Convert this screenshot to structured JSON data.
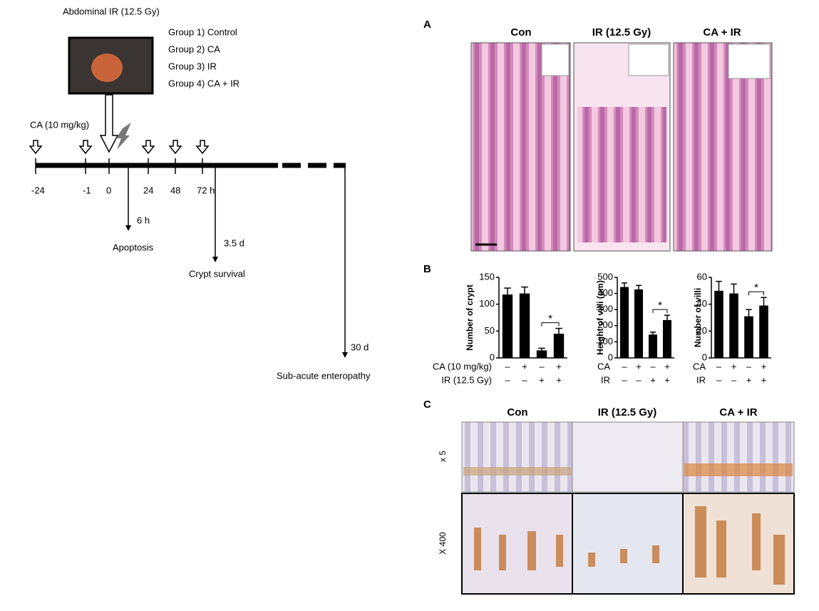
{
  "timeline": {
    "photo_label": "Abdominal IR (12.5 Gy)",
    "groups": [
      "Group 1) Control",
      "Group 2) CA",
      "Group 3) IR",
      "Group 4) CA + IR"
    ],
    "treatment_label": "CA (10 mg/kg)",
    "time_labels": [
      "-24",
      "-1",
      "0",
      "24",
      "48",
      "72 h"
    ],
    "endpoints": [
      {
        "time": "6 h",
        "label": "Apoptosis"
      },
      {
        "time": "3.5 d",
        "label": "Crypt survival"
      },
      {
        "time": "30 d",
        "label": "Sub-acute enteropathy"
      }
    ]
  },
  "panel_a": {
    "label": "A",
    "columns": [
      "Con",
      "IR (12.5 Gy)",
      "CA + IR"
    ]
  },
  "panel_b": {
    "label": "B"
  },
  "panel_c": {
    "label": "C",
    "columns": [
      "Con",
      "IR (12.5 Gy)",
      "CA + IR"
    ],
    "rows": [
      "x 5",
      "X 400"
    ]
  },
  "chart_data": [
    {
      "type": "bar",
      "ylabel": "Number of crypt",
      "values": [
        118,
        120,
        14,
        45
      ],
      "errors": [
        12,
        12,
        4,
        10
      ],
      "color": "#000000",
      "ylim": [
        0,
        150
      ],
      "yticks": [
        0,
        50,
        100,
        150
      ],
      "annotation": "*",
      "conditions": [
        {
          "label": "CA (10 mg/kg)",
          "signs": [
            "–",
            "+",
            "–",
            "+"
          ]
        },
        {
          "label": "IR (12.5 Gy)",
          "signs": [
            "–",
            "–",
            "+",
            "+"
          ]
        }
      ]
    },
    {
      "type": "bar",
      "ylabel": "Height of villi (μm)",
      "values": [
        440,
        425,
        145,
        235
      ],
      "errors": [
        25,
        25,
        15,
        30
      ],
      "color": "#000000",
      "ylim": [
        0,
        500
      ],
      "yticks": [
        0,
        100,
        200,
        300,
        400,
        500
      ],
      "annotation": "*",
      "conditions": [
        {
          "label": "CA",
          "signs": [
            "–",
            "+",
            "–",
            "+"
          ]
        },
        {
          "label": "IR",
          "signs": [
            "–",
            "–",
            "+",
            "+"
          ]
        }
      ]
    },
    {
      "type": "bar",
      "ylabel": "Number of villi",
      "values": [
        50,
        48,
        31,
        39
      ],
      "errors": [
        7,
        7,
        5,
        6
      ],
      "color": "#000000",
      "ylim": [
        0,
        60
      ],
      "yticks": [
        0,
        20,
        40,
        60
      ],
      "annotation": "*",
      "conditions": [
        {
          "label": "CA",
          "signs": [
            "–",
            "+",
            "–",
            "+"
          ]
        },
        {
          "label": "IR",
          "signs": [
            "–",
            "–",
            "+",
            "+"
          ]
        }
      ]
    }
  ]
}
